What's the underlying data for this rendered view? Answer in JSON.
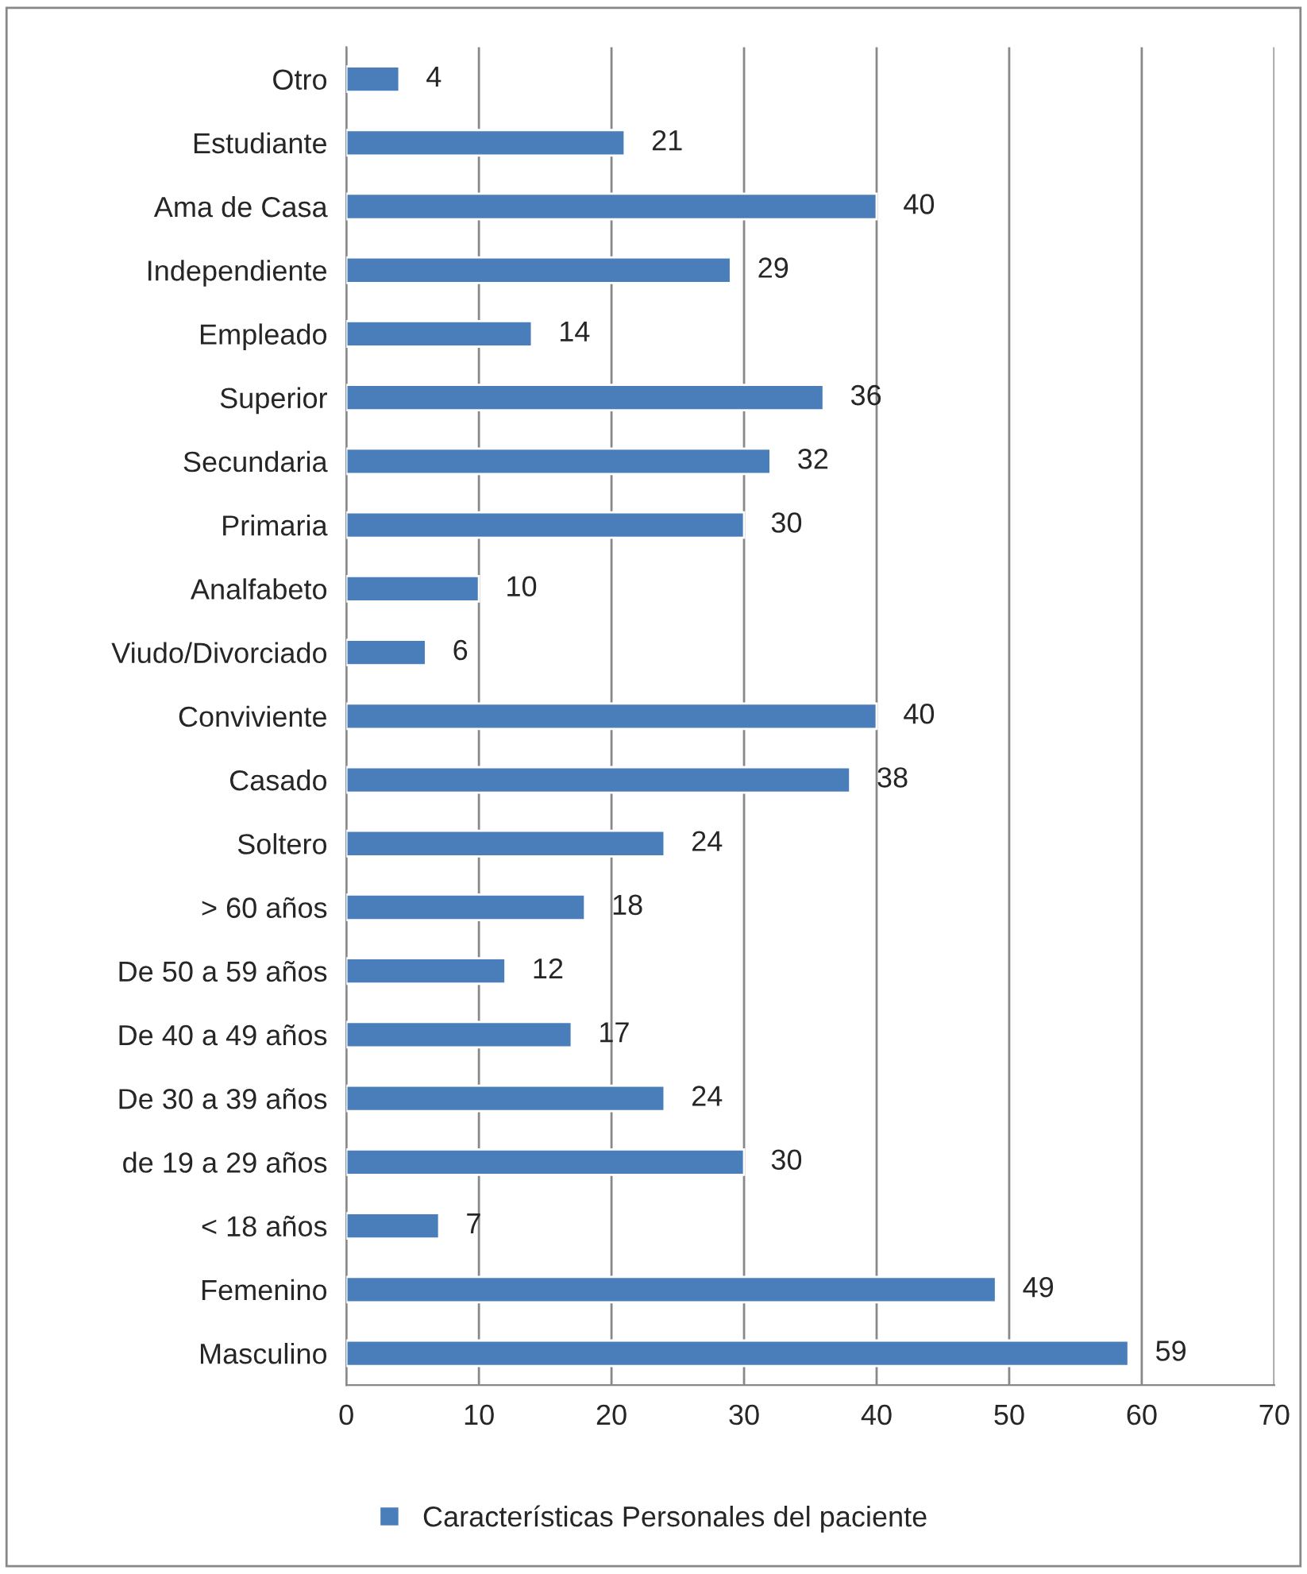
{
  "chart_data": {
    "type": "bar",
    "orientation": "horizontal",
    "categories": [
      "Otro",
      "Estudiante",
      "Ama de Casa",
      "Independiente",
      "Empleado",
      "Superior",
      "Secundaria",
      "Primaria",
      "Analfabeto",
      "Viudo/Divorciado",
      "Conviviente",
      "Casado",
      "Soltero",
      "> 60 años",
      "De 50 a 59 años",
      "De 40 a 49 años",
      "De 30 a 39 años",
      "de 19 a 29 años",
      "< 18 años",
      "Femenino",
      "Masculino"
    ],
    "series": [
      {
        "name": "Características Personales del paciente",
        "color": "#4a7ebb",
        "values": [
          4,
          21,
          40,
          29,
          14,
          36,
          32,
          30,
          10,
          6,
          40,
          38,
          24,
          18,
          12,
          17,
          24,
          30,
          7,
          49,
          59
        ]
      }
    ],
    "xlim": [
      0,
      70
    ],
    "xticks": [
      0,
      10,
      20,
      30,
      40,
      50,
      60,
      70
    ],
    "grid": "x",
    "legend": "bottom",
    "data_labels": true
  }
}
